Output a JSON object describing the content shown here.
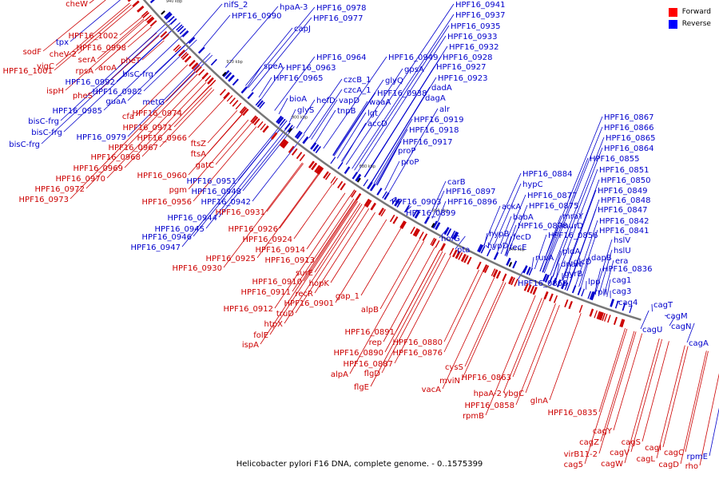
{
  "title": "Helicobacter pylori F16 DNA, complete genome. - 0..1575399",
  "legend": [
    {
      "label": "Forward",
      "color": "#ff0000"
    },
    {
      "label": "Reverse",
      "color": "#0000ff"
    }
  ],
  "colors": {
    "forward": "#cc0000",
    "reverse": "#0000cc",
    "backbone": "#777777"
  },
  "ticks": [
    "1040 kbp",
    "1020 kbp",
    "1000 kbp",
    "980 kbp",
    "960 kbp",
    "940 kbp",
    "920 kbp",
    "900 kbp",
    "880 kbp",
    "860 kbp",
    "840 kbp"
  ],
  "genes": [
    {
      "name": "cheW",
      "strand": "forward"
    },
    {
      "name": "HPF16_1002",
      "strand": "forward"
    },
    {
      "name": "tpx",
      "strand": "reverse"
    },
    {
      "name": "HPF16_0998",
      "strand": "forward"
    },
    {
      "name": "sodF",
      "strand": "forward"
    },
    {
      "name": "cheV-2",
      "strand": "forward"
    },
    {
      "name": "serA",
      "strand": "forward"
    },
    {
      "name": "aroA",
      "strand": "forward"
    },
    {
      "name": "pheT",
      "strand": "forward"
    },
    {
      "name": "yigC",
      "strand": "forward"
    },
    {
      "name": "rpsA",
      "strand": "forward"
    },
    {
      "name": "HPF16_1001",
      "strand": "forward"
    },
    {
      "name": "bisC-frg",
      "strand": "reverse"
    },
    {
      "name": "HPF16_0992",
      "strand": "reverse"
    },
    {
      "name": "ispH",
      "strand": "forward"
    },
    {
      "name": "pheS",
      "strand": "forward"
    },
    {
      "name": "HPF16_0982",
      "strand": "reverse"
    },
    {
      "name": "guaA",
      "strand": "reverse"
    },
    {
      "name": "metG",
      "strand": "reverse"
    },
    {
      "name": "HPF16_0985",
      "strand": "reverse"
    },
    {
      "name": "bisC-frg",
      "strand": "reverse"
    },
    {
      "name": "bisC-frg",
      "strand": "reverse"
    },
    {
      "name": "bisC-frg",
      "strand": "reverse"
    },
    {
      "name": "cfa",
      "strand": "forward"
    },
    {
      "name": "HPF16_0974",
      "strand": "forward"
    },
    {
      "name": "HPF16_0971",
      "strand": "forward"
    },
    {
      "name": "HPF16_0979",
      "strand": "reverse"
    },
    {
      "name": "HPF16_0966",
      "strand": "forward"
    },
    {
      "name": "HPF16_0967",
      "strand": "forward"
    },
    {
      "name": "HPF16_0968",
      "strand": "forward"
    },
    {
      "name": "HPF16_0969",
      "strand": "forward"
    },
    {
      "name": "HPF16_0970",
      "strand": "forward"
    },
    {
      "name": "HPF16_0972",
      "strand": "forward"
    },
    {
      "name": "HPF16_0973",
      "strand": "forward"
    },
    {
      "name": "ftsZ",
      "strand": "forward"
    },
    {
      "name": "ftsA",
      "strand": "forward"
    },
    {
      "name": "gatC",
      "strand": "forward"
    },
    {
      "name": "HPF16_0960",
      "strand": "forward"
    },
    {
      "name": "pgm",
      "strand": "forward"
    },
    {
      "name": "HPF16_0956",
      "strand": "forward"
    },
    {
      "name": "HPF16_0951",
      "strand": "reverse"
    },
    {
      "name": "HPF16_0948",
      "strand": "reverse"
    },
    {
      "name": "HPF16_0942",
      "strand": "reverse"
    },
    {
      "name": "HPF16_0931",
      "strand": "forward"
    },
    {
      "name": "HPF16_0944",
      "strand": "reverse"
    },
    {
      "name": "HPF16_0945",
      "strand": "reverse"
    },
    {
      "name": "HPF16_0946",
      "strand": "reverse"
    },
    {
      "name": "HPF16_0947",
      "strand": "reverse"
    },
    {
      "name": "HPF16_0926",
      "strand": "forward"
    },
    {
      "name": "HPF16_0924",
      "strand": "forward"
    },
    {
      "name": "HPF16_0914",
      "strand": "forward"
    },
    {
      "name": "HPF16_0925",
      "strand": "forward"
    },
    {
      "name": "HPF16_0913",
      "strand": "forward"
    },
    {
      "name": "HPF16_0930",
      "strand": "forward"
    },
    {
      "name": "surE",
      "strand": "forward"
    },
    {
      "name": "hopK",
      "strand": "forward"
    },
    {
      "name": "HPF16_0910",
      "strand": "forward"
    },
    {
      "name": "HPF16_0911",
      "strand": "forward"
    },
    {
      "name": "recR",
      "strand": "forward"
    },
    {
      "name": "HPF16_0901",
      "strand": "forward"
    },
    {
      "name": "gap_1",
      "strand": "forward"
    },
    {
      "name": "HPF16_0912",
      "strand": "forward"
    },
    {
      "name": "truD",
      "strand": "forward"
    },
    {
      "name": "htpX",
      "strand": "forward"
    },
    {
      "name": "folE",
      "strand": "forward"
    },
    {
      "name": "ispA",
      "strand": "forward"
    },
    {
      "name": "alpB",
      "strand": "forward"
    },
    {
      "name": "HPF16_0891",
      "strand": "forward"
    },
    {
      "name": "rep",
      "strand": "forward"
    },
    {
      "name": "HPF16_0880",
      "strand": "forward"
    },
    {
      "name": "HPF16_0890",
      "strand": "forward"
    },
    {
      "name": "HPF16_0876",
      "strand": "forward"
    },
    {
      "name": "HPF16_0887",
      "strand": "forward"
    },
    {
      "name": "alpA",
      "strand": "forward"
    },
    {
      "name": "flgD",
      "strand": "forward"
    },
    {
      "name": "flgE",
      "strand": "forward"
    },
    {
      "name": "cysS",
      "strand": "forward"
    },
    {
      "name": "mviN",
      "strand": "forward"
    },
    {
      "name": "vacA",
      "strand": "forward"
    },
    {
      "name": "HPF16_0863",
      "strand": "forward"
    },
    {
      "name": "hpaA-2",
      "strand": "forward"
    },
    {
      "name": "ybgC",
      "strand": "forward"
    },
    {
      "name": "HPF16_0858",
      "strand": "forward"
    },
    {
      "name": "rpmB",
      "strand": "forward"
    },
    {
      "name": "glnA",
      "strand": "forward"
    },
    {
      "name": "HPF16_0835",
      "strand": "forward"
    },
    {
      "name": "cagZ",
      "strand": "forward"
    },
    {
      "name": "cagY",
      "strand": "forward"
    },
    {
      "name": "virB11-2",
      "strand": "forward"
    },
    {
      "name": "cagV",
      "strand": "forward"
    },
    {
      "name": "cagS",
      "strand": "forward"
    },
    {
      "name": "cag5",
      "strand": "forward"
    },
    {
      "name": "cagW",
      "strand": "forward"
    },
    {
      "name": "cagL",
      "strand": "forward"
    },
    {
      "name": "cagI",
      "strand": "forward"
    },
    {
      "name": "cagC",
      "strand": "forward"
    },
    {
      "name": "cagD",
      "strand": "forward"
    },
    {
      "name": "rpmE",
      "strand": "reverse"
    },
    {
      "name": "rho",
      "strand": "forward"
    },
    {
      "name": "nifS_2",
      "strand": "reverse"
    },
    {
      "name": "HPF16_0990",
      "strand": "reverse"
    },
    {
      "name": "hpaA-3",
      "strand": "reverse"
    },
    {
      "name": "HPF16_0978",
      "strand": "reverse"
    },
    {
      "name": "HPF16_0977",
      "strand": "reverse"
    },
    {
      "name": "capJ",
      "strand": "reverse"
    },
    {
      "name": "speA",
      "strand": "reverse"
    },
    {
      "name": "HPF16_0964",
      "strand": "reverse"
    },
    {
      "name": "HPF16_0963",
      "strand": "reverse"
    },
    {
      "name": "HPF16_0965",
      "strand": "reverse"
    },
    {
      "name": "czcB_1",
      "strand": "reverse"
    },
    {
      "name": "czcA_1",
      "strand": "reverse"
    },
    {
      "name": "bioA",
      "strand": "reverse"
    },
    {
      "name": "hefD",
      "strand": "reverse"
    },
    {
      "name": "vapD",
      "strand": "reverse"
    },
    {
      "name": "glyS",
      "strand": "reverse"
    },
    {
      "name": "tnpB",
      "strand": "reverse"
    },
    {
      "name": "waaA",
      "strand": "reverse"
    },
    {
      "name": "lgt",
      "strand": "reverse"
    },
    {
      "name": "accD",
      "strand": "reverse"
    },
    {
      "name": "HPF16_0941",
      "strand": "reverse"
    },
    {
      "name": "HPF16_0937",
      "strand": "reverse"
    },
    {
      "name": "HPF16_0935",
      "strand": "reverse"
    },
    {
      "name": "HPF16_0933",
      "strand": "reverse"
    },
    {
      "name": "HPF16_0932",
      "strand": "reverse"
    },
    {
      "name": "HPF16_0949",
      "strand": "reverse"
    },
    {
      "name": "HPF16_0928",
      "strand": "reverse"
    },
    {
      "name": "gpsA",
      "strand": "reverse"
    },
    {
      "name": "HPF16_0927",
      "strand": "reverse"
    },
    {
      "name": "glyQ",
      "strand": "reverse"
    },
    {
      "name": "HPF16_0923",
      "strand": "reverse"
    },
    {
      "name": "HPF16_0938",
      "strand": "reverse"
    },
    {
      "name": "dadA",
      "strand": "reverse"
    },
    {
      "name": "dagA",
      "strand": "reverse"
    },
    {
      "name": "alr",
      "strand": "reverse"
    },
    {
      "name": "HPF16_0919",
      "strand": "reverse"
    },
    {
      "name": "HPF16_0918",
      "strand": "reverse"
    },
    {
      "name": "HPF16_0917",
      "strand": "reverse"
    },
    {
      "name": "proP",
      "strand": "reverse"
    },
    {
      "name": "proP",
      "strand": "reverse"
    },
    {
      "name": "carB",
      "strand": "reverse"
    },
    {
      "name": "HPF16_0897",
      "strand": "reverse"
    },
    {
      "name": "HPF16_0903",
      "strand": "reverse"
    },
    {
      "name": "HPF16_0896",
      "strand": "reverse"
    },
    {
      "name": "HPF16_0899",
      "strand": "reverse"
    },
    {
      "name": "hofG",
      "strand": "reverse"
    },
    {
      "name": "pta",
      "strand": "reverse"
    },
    {
      "name": "HPF16_0884",
      "strand": "reverse"
    },
    {
      "name": "hypC",
      "strand": "reverse"
    },
    {
      "name": "HPF16_0877",
      "strand": "reverse"
    },
    {
      "name": "ackA",
      "strand": "reverse"
    },
    {
      "name": "HPF16_0875",
      "strand": "reverse"
    },
    {
      "name": "babA",
      "strand": "reverse"
    },
    {
      "name": "hypB",
      "strand": "reverse"
    },
    {
      "name": "HPF16_0878",
      "strand": "reverse"
    },
    {
      "name": "fecD",
      "strand": "reverse"
    },
    {
      "name": "hypD",
      "strand": "reverse"
    },
    {
      "name": "fecE",
      "strand": "reverse"
    },
    {
      "name": "ruvA",
      "strand": "reverse"
    },
    {
      "name": "HPF16_0869",
      "strand": "reverse"
    },
    {
      "name": "HPF16_0867",
      "strand": "reverse"
    },
    {
      "name": "HPF16_0866",
      "strand": "reverse"
    },
    {
      "name": "HPF16_0865",
      "strand": "reverse"
    },
    {
      "name": "HPF16_0864",
      "strand": "reverse"
    },
    {
      "name": "HPF16_0855",
      "strand": "reverse"
    },
    {
      "name": "HPF16_0851",
      "strand": "reverse"
    },
    {
      "name": "HPF16_0850",
      "strand": "reverse"
    },
    {
      "name": "HPF16_0849",
      "strand": "reverse"
    },
    {
      "name": "HPF16_0848",
      "strand": "reverse"
    },
    {
      "name": "HPF16_0847",
      "strand": "reverse"
    },
    {
      "name": "mraY",
      "strand": "reverse"
    },
    {
      "name": "murD",
      "strand": "reverse"
    },
    {
      "name": "HPF16_0856",
      "strand": "reverse"
    },
    {
      "name": "HPF16_0842",
      "strand": "reverse"
    },
    {
      "name": "HPF16_0841",
      "strand": "reverse"
    },
    {
      "name": "hslV",
      "strand": "reverse"
    },
    {
      "name": "hslU",
      "strand": "reverse"
    },
    {
      "name": "pldA",
      "strand": "reverse"
    },
    {
      "name": "glcD",
      "strand": "reverse"
    },
    {
      "name": "dnaN",
      "strand": "reverse"
    },
    {
      "name": "dapB",
      "strand": "reverse"
    },
    {
      "name": "era",
      "strand": "reverse"
    },
    {
      "name": "gyrB",
      "strand": "reverse"
    },
    {
      "name": "HPF16_0836",
      "strand": "reverse"
    },
    {
      "name": "cag1",
      "strand": "reverse"
    },
    {
      "name": "lpp",
      "strand": "reverse"
    },
    {
      "name": "cag3",
      "strand": "reverse"
    },
    {
      "name": "rplI",
      "strand": "reverse"
    },
    {
      "name": "cag4",
      "strand": "reverse"
    },
    {
      "name": "cagT",
      "strand": "reverse"
    },
    {
      "name": "cagM",
      "strand": "reverse"
    },
    {
      "name": "cagU",
      "strand": "reverse"
    },
    {
      "name": "cagN",
      "strand": "reverse"
    },
    {
      "name": "cagA",
      "strand": "reverse"
    }
  ]
}
